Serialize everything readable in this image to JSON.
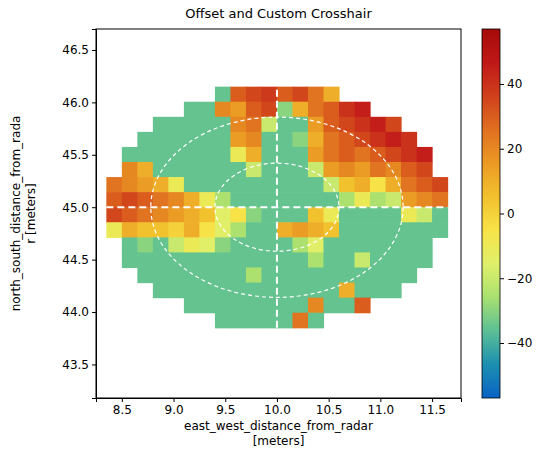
{
  "chart_data": {
    "type": "heatmap",
    "title": "Offset and Custom Crosshair",
    "xlabel": [
      "east_west_distance_from_radar",
      "[meters]"
    ],
    "ylabel": [
      "north_south_distance_from_rada",
      "r [meters]"
    ],
    "xlim": [
      8.25,
      11.78
    ],
    "ylim": [
      43.18,
      46.7
    ],
    "xticks": [
      8.5,
      {
        "value": 9,
        "label": "9.0"
      },
      9.5,
      {
        "value": 10,
        "label": "10.0"
      },
      10.5,
      {
        "value": 11,
        "label": "11.0"
      },
      11.5
    ],
    "yticks": [
      43.5,
      {
        "value": 44,
        "label": "44.0"
      },
      44.5,
      {
        "value": 45,
        "label": "45.0"
      },
      45.5,
      {
        "value": 46,
        "label": "46.0"
      },
      46.5
    ],
    "x_edges": [
      8.35,
      8.5,
      8.65,
      8.8,
      8.95,
      9.1,
      9.25,
      9.4,
      9.55,
      9.7,
      9.85,
      10,
      10.15,
      10.3,
      10.45,
      10.6,
      10.75,
      10.9,
      11.05,
      11.2,
      11.35,
      11.5,
      11.65
    ],
    "y_edges": [
      46.15,
      46.0063,
      45.8625,
      45.7188,
      45.575,
      45.4313,
      45.2875,
      45.1438,
      45.0,
      44.8563,
      44.7125,
      44.5688,
      44.425,
      44.2813,
      44.1375,
      43.9938,
      43.85
    ],
    "z": [
      [
        null,
        null,
        null,
        null,
        null,
        null,
        null,
        -35,
        30,
        35,
        38,
        30,
        35,
        25,
        10,
        null,
        null,
        null,
        null,
        null,
        null,
        null
      ],
      [
        null,
        null,
        null,
        null,
        null,
        -35,
        -35,
        20,
        15,
        30,
        35,
        -30,
        10,
        25,
        30,
        40,
        45,
        null,
        null,
        null,
        null,
        null
      ],
      [
        null,
        null,
        null,
        -35,
        -35,
        -35,
        -35,
        -35,
        20,
        25,
        -20,
        -35,
        -35,
        15,
        30,
        35,
        40,
        45,
        35,
        null,
        null,
        null
      ],
      [
        null,
        null,
        -35,
        -35,
        -35,
        -35,
        -35,
        -35,
        15,
        20,
        -35,
        -35,
        -30,
        10,
        25,
        30,
        35,
        40,
        45,
        40,
        null,
        null
      ],
      [
        null,
        -35,
        -35,
        -35,
        -35,
        -35,
        -35,
        -35,
        -10,
        10,
        -35,
        -35,
        -35,
        15,
        25,
        30,
        25,
        30,
        35,
        40,
        45,
        null
      ],
      [
        null,
        20,
        10,
        -35,
        -35,
        -35,
        -35,
        -35,
        -35,
        -20,
        -35,
        -35,
        -35,
        -20,
        15,
        20,
        15,
        25,
        20,
        30,
        35,
        null
      ],
      [
        25,
        20,
        15,
        10,
        -10,
        -35,
        -35,
        -35,
        -35,
        -35,
        -35,
        -35,
        -35,
        -35,
        -20,
        5,
        10,
        -5,
        10,
        25,
        30,
        35
      ],
      [
        30,
        35,
        30,
        25,
        20,
        10,
        -10,
        -25,
        -35,
        -35,
        -35,
        -35,
        -35,
        -35,
        -35,
        -25,
        -10,
        -25,
        -20,
        15,
        20,
        25
      ],
      [
        35,
        30,
        25,
        20,
        15,
        10,
        5,
        -15,
        -5,
        -30,
        -35,
        -35,
        -35,
        5,
        -10,
        -35,
        -35,
        -35,
        -35,
        -10,
        -20,
        -35
      ],
      [
        -10,
        10,
        5,
        5,
        0,
        10,
        -5,
        -15,
        -25,
        -35,
        -35,
        10,
        15,
        10,
        5,
        -35,
        -35,
        -35,
        -35,
        -35,
        -35,
        -35
      ],
      [
        null,
        -35,
        -30,
        -35,
        -20,
        -10,
        -15,
        -30,
        -35,
        -35,
        -35,
        -35,
        -25,
        -15,
        -35,
        -35,
        -35,
        -35,
        -35,
        -35,
        -35,
        null
      ],
      [
        null,
        -35,
        -35,
        -35,
        -35,
        -35,
        -35,
        -35,
        -35,
        -35,
        -35,
        -35,
        -35,
        -25,
        -35,
        -35,
        -20,
        -35,
        -35,
        -35,
        -35,
        null
      ],
      [
        null,
        null,
        -35,
        -35,
        -35,
        -35,
        -35,
        -35,
        -35,
        -25,
        -35,
        -35,
        -35,
        -35,
        -35,
        -35,
        -35,
        -35,
        -35,
        -35,
        null,
        null
      ],
      [
        null,
        null,
        null,
        -35,
        -35,
        -35,
        -35,
        -35,
        -35,
        -35,
        -35,
        -35,
        -35,
        -35,
        -35,
        10,
        -35,
        -35,
        -35,
        null,
        null,
        null
      ],
      [
        null,
        null,
        null,
        null,
        null,
        -35,
        -35,
        -35,
        -35,
        -35,
        -35,
        -35,
        -35,
        20,
        -35,
        -35,
        30,
        null,
        null,
        null,
        null,
        null
      ],
      [
        null,
        null,
        null,
        null,
        null,
        null,
        null,
        -35,
        -35,
        -35,
        -35,
        -35,
        25,
        -35,
        null,
        null,
        null,
        null,
        null,
        null,
        null,
        null
      ]
    ],
    "colorbar": {
      "range": [
        -57,
        57
      ],
      "ticks": [
        {
          "value": -40,
          "label": "−40"
        },
        {
          "value": -20,
          "label": "−20"
        },
        0,
        20,
        40
      ]
    },
    "crosshair": {
      "center": [
        10,
        45
      ],
      "x_range": [
        8.35,
        11.65
      ],
      "y_range": [
        43.85,
        46.15
      ],
      "rings": [
        [
          0.6,
          0.42
        ],
        [
          1.22,
          0.86
        ]
      ]
    }
  }
}
